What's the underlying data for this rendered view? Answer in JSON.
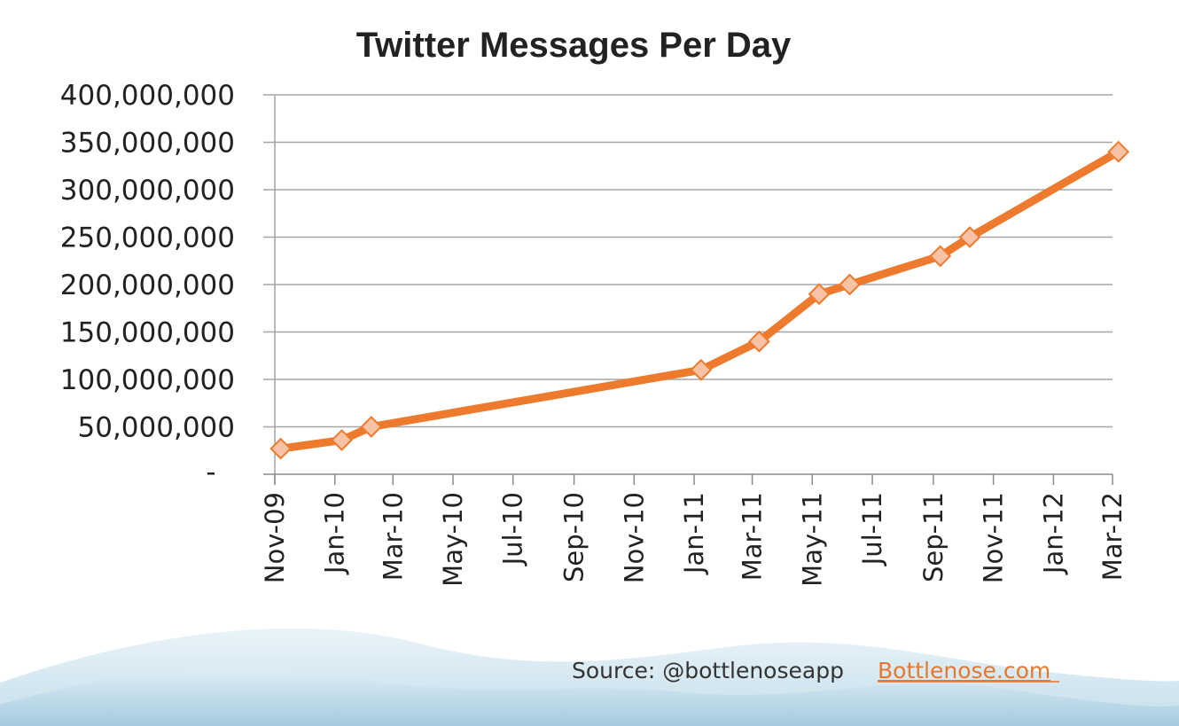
{
  "chart_data": {
    "type": "line",
    "title": "Twitter Messages Per Day",
    "xlabel": "",
    "ylabel": "",
    "ylim": [
      0,
      400000000
    ],
    "yticks": [
      0,
      50000000,
      100000000,
      150000000,
      200000000,
      250000000,
      300000000,
      350000000,
      400000000
    ],
    "ytick_labels": [
      "-",
      "50,000,000",
      "100,000,000",
      "150,000,000",
      "200,000,000",
      "250,000,000",
      "300,000,000",
      "350,000,000",
      "400,000,000"
    ],
    "xlim": [
      "2009-11-01",
      "2012-03-01"
    ],
    "xticks": [
      "2009-11-01",
      "2010-01-01",
      "2010-03-01",
      "2010-05-01",
      "2010-07-01",
      "2010-09-01",
      "2010-11-01",
      "2011-01-01",
      "2011-03-01",
      "2011-05-01",
      "2011-07-01",
      "2011-09-01",
      "2011-11-01",
      "2012-01-01",
      "2012-03-01"
    ],
    "xtick_labels": [
      "Nov-09",
      "Jan-10",
      "Mar-10",
      "May-10",
      "Jul-10",
      "Sep-10",
      "Nov-10",
      "Jan-11",
      "Mar-11",
      "May-11",
      "Jul-11",
      "Sep-11",
      "Nov-11",
      "Jan-12",
      "Mar-12"
    ],
    "grid": "horizontal",
    "colors": {
      "line": "#ee7a2d",
      "marker_fill": "#f8c2a4",
      "marker_stroke": "#ee7a2d",
      "grid": "#a6a6a6"
    },
    "series": [
      {
        "x": [
          "2009-11-07",
          "2010-01-08",
          "2010-02-07",
          "2011-01-08",
          "2011-03-08",
          "2011-05-08",
          "2011-06-08",
          "2011-09-08",
          "2011-10-08",
          "2012-03-07"
        ],
        "values": [
          27000000,
          36000000,
          50000000,
          110000000,
          140000000,
          190000000,
          200000000,
          230000000,
          250000000,
          340000000
        ]
      }
    ]
  },
  "footer": {
    "source_text": "Source: @bottlenoseapp",
    "link_text": "Bottlenose.com"
  }
}
